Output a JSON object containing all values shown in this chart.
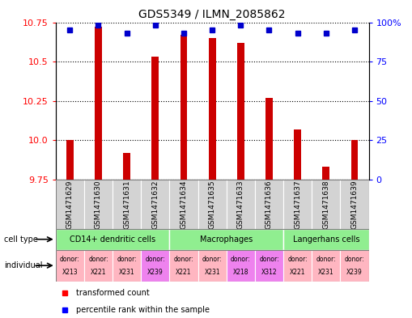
{
  "title": "GDS5349 / ILMN_2085862",
  "samples": [
    "GSM1471629",
    "GSM1471630",
    "GSM1471631",
    "GSM1471632",
    "GSM1471634",
    "GSM1471635",
    "GSM1471633",
    "GSM1471636",
    "GSM1471637",
    "GSM1471638",
    "GSM1471639"
  ],
  "transformed_counts": [
    10.0,
    10.72,
    9.92,
    10.53,
    10.67,
    10.65,
    10.62,
    10.27,
    10.07,
    9.83,
    10.0
  ],
  "percentile_ranks": [
    95,
    98,
    93,
    98,
    93,
    95,
    98,
    95,
    93,
    93,
    95
  ],
  "ylim": [
    9.75,
    10.75
  ],
  "yticks": [
    9.75,
    10.0,
    10.25,
    10.5,
    10.75
  ],
  "right_yticks": [
    0,
    25,
    50,
    75,
    100
  ],
  "cell_type_groups": [
    {
      "label": "CD14+ dendritic cells",
      "start": 0,
      "end": 4,
      "color": "#90EE90"
    },
    {
      "label": "Macrophages",
      "start": 4,
      "end": 8,
      "color": "#90EE90"
    },
    {
      "label": "Langerhans cells",
      "start": 8,
      "end": 11,
      "color": "#90EE90"
    }
  ],
  "indiv_data": [
    {
      "label": "X213",
      "color": "#FFB6C1"
    },
    {
      "label": "X221",
      "color": "#FFB6C1"
    },
    {
      "label": "X231",
      "color": "#FFB6C1"
    },
    {
      "label": "X239",
      "color": "#EE82EE"
    },
    {
      "label": "X221",
      "color": "#FFB6C1"
    },
    {
      "label": "X231",
      "color": "#FFB6C1"
    },
    {
      "label": "X218",
      "color": "#EE82EE"
    },
    {
      "label": "X312",
      "color": "#EE82EE"
    },
    {
      "label": "X221",
      "color": "#FFB6C1"
    },
    {
      "label": "X231",
      "color": "#FFB6C1"
    },
    {
      "label": "X239",
      "color": "#FFB6C1"
    }
  ],
  "bar_color": "#CC0000",
  "dot_color": "#0000CC",
  "bar_bottom": 9.75,
  "bar_width": 0.25,
  "label_box_color": "#D3D3D3",
  "grid_color": "black",
  "grid_style": ":",
  "grid_lw": 0.8
}
